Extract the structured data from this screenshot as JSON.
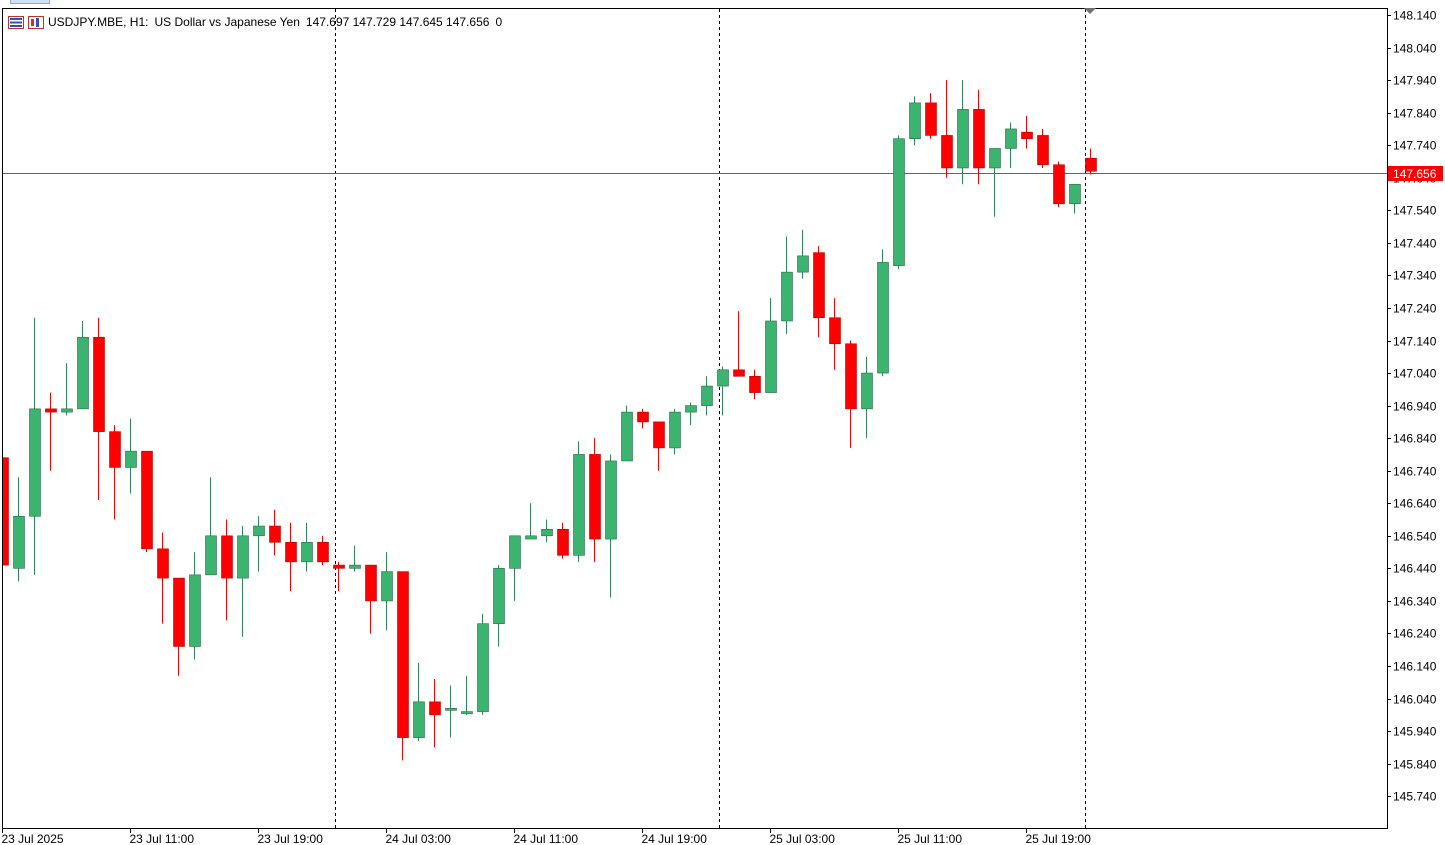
{
  "header": {
    "symbol": "USDJPY.MBE, H1:",
    "description": "US Dollar vs Japanese Yen",
    "ohlc": "147.697 147.729 147.645 147.656",
    "volume": "0"
  },
  "colors": {
    "bull": "#3cb371",
    "bear": "#ff0000",
    "price_line": "#e03030",
    "price_label_bg": "#ff0000",
    "axis": "#000000"
  },
  "chart_data": {
    "type": "candlestick",
    "symbol": "USDJPY.MBE",
    "timeframe": "H1",
    "ylim": [
      145.64,
      148.2
    ],
    "y_ticks": [
      148.14,
      148.04,
      147.94,
      147.84,
      147.74,
      147.64,
      147.54,
      147.44,
      147.34,
      147.24,
      147.14,
      147.04,
      146.94,
      146.84,
      146.74,
      146.64,
      146.54,
      146.44,
      146.34,
      146.24,
      146.14,
      146.04,
      145.94,
      145.84,
      145.74
    ],
    "y_tick_labels": [
      "148.140",
      "148.040",
      "147.940",
      "147.840",
      "147.740",
      "147.640",
      "147.540",
      "147.440",
      "147.340",
      "147.240",
      "147.140",
      "147.040",
      "146.940",
      "146.840",
      "146.740",
      "146.640",
      "146.540",
      "146.440",
      "146.340",
      "146.240",
      "146.140",
      "146.040",
      "145.940",
      "145.840",
      "145.740"
    ],
    "x_tick_labels": [
      {
        "label": "23 Jul 2025",
        "index": 0
      },
      {
        "label": "23 Jul 11:00",
        "index": 8
      },
      {
        "label": "23 Jul 19:00",
        "index": 16
      },
      {
        "label": "24 Jul 03:00",
        "index": 24
      },
      {
        "label": "24 Jul 11:00",
        "index": 32
      },
      {
        "label": "24 Jul 19:00",
        "index": 40
      },
      {
        "label": "25 Jul 03:00",
        "index": 48
      },
      {
        "label": "25 Jul 11:00",
        "index": 56
      },
      {
        "label": "25 Jul 19:00",
        "index": 64
      }
    ],
    "day_separators": [
      20.8,
      44.8,
      67.7
    ],
    "current_price": 147.656,
    "current_price_label": "147.656",
    "grid": false,
    "candles": [
      [
        146.78,
        146.78,
        146.44,
        146.45
      ],
      [
        146.44,
        146.72,
        146.4,
        146.6
      ],
      [
        146.6,
        147.21,
        146.42,
        146.93
      ],
      [
        146.93,
        146.98,
        146.74,
        146.92
      ],
      [
        146.92,
        147.07,
        146.91,
        146.93
      ],
      [
        146.93,
        147.2,
        146.93,
        147.15
      ],
      [
        147.15,
        147.21,
        146.65,
        146.86
      ],
      [
        146.86,
        146.88,
        146.59,
        146.75
      ],
      [
        146.75,
        146.9,
        146.67,
        146.8
      ],
      [
        146.8,
        146.8,
        146.49,
        146.5
      ],
      [
        146.5,
        146.55,
        146.27,
        146.41
      ],
      [
        146.41,
        146.41,
        146.11,
        146.2
      ],
      [
        146.2,
        146.49,
        146.16,
        146.42
      ],
      [
        146.42,
        146.72,
        146.42,
        146.54
      ],
      [
        146.54,
        146.59,
        146.28,
        146.41
      ],
      [
        146.41,
        146.57,
        146.23,
        146.54
      ],
      [
        146.54,
        146.6,
        146.43,
        146.57
      ],
      [
        146.57,
        146.62,
        146.48,
        146.52
      ],
      [
        146.52,
        146.58,
        146.37,
        146.46
      ],
      [
        146.46,
        146.58,
        146.43,
        146.52
      ],
      [
        146.52,
        146.54,
        146.45,
        146.46
      ],
      [
        146.45,
        146.46,
        146.37,
        146.44
      ],
      [
        146.44,
        146.51,
        146.43,
        146.45
      ],
      [
        146.45,
        146.45,
        146.24,
        146.34
      ],
      [
        146.34,
        146.49,
        146.25,
        146.43
      ],
      [
        146.43,
        146.43,
        145.85,
        145.92
      ],
      [
        145.92,
        146.15,
        145.91,
        146.03
      ],
      [
        146.03,
        146.1,
        145.89,
        145.99
      ],
      [
        146.01,
        146.08,
        145.92,
        146.01
      ],
      [
        146.0,
        146.11,
        145.99,
        146.0
      ],
      [
        146.0,
        146.3,
        145.99,
        146.27
      ],
      [
        146.27,
        146.45,
        146.2,
        146.44
      ],
      [
        146.44,
        146.54,
        146.34,
        146.54
      ],
      [
        146.53,
        146.64,
        146.53,
        146.54
      ],
      [
        146.54,
        146.59,
        146.52,
        146.56
      ],
      [
        146.56,
        146.58,
        146.47,
        146.48
      ],
      [
        146.48,
        146.83,
        146.46,
        146.79
      ],
      [
        146.79,
        146.84,
        146.46,
        146.53
      ],
      [
        146.53,
        146.79,
        146.35,
        146.77
      ],
      [
        146.77,
        146.94,
        146.77,
        146.92
      ],
      [
        146.92,
        146.93,
        146.87,
        146.89
      ],
      [
        146.89,
        146.89,
        146.74,
        146.81
      ],
      [
        146.81,
        146.93,
        146.79,
        146.92
      ],
      [
        146.92,
        146.95,
        146.88,
        146.94
      ],
      [
        146.94,
        147.03,
        146.91,
        147.0
      ],
      [
        147.0,
        147.06,
        146.91,
        147.05
      ],
      [
        147.05,
        147.23,
        147.03,
        147.03
      ],
      [
        147.03,
        147.05,
        146.96,
        146.98
      ],
      [
        146.98,
        147.27,
        146.98,
        147.2
      ],
      [
        147.2,
        147.46,
        147.16,
        147.35
      ],
      [
        147.35,
        147.48,
        147.33,
        147.4
      ],
      [
        147.41,
        147.43,
        147.15,
        147.21
      ],
      [
        147.21,
        147.27,
        147.05,
        147.13
      ],
      [
        147.13,
        147.14,
        146.81,
        146.93
      ],
      [
        146.93,
        147.09,
        146.84,
        147.04
      ],
      [
        147.04,
        147.42,
        147.03,
        147.38
      ],
      [
        147.37,
        147.77,
        147.36,
        147.76
      ],
      [
        147.76,
        147.89,
        147.74,
        147.87
      ],
      [
        147.87,
        147.9,
        147.76,
        147.77
      ],
      [
        147.77,
        147.94,
        147.64,
        147.67
      ],
      [
        147.67,
        147.94,
        147.62,
        147.85
      ],
      [
        147.85,
        147.91,
        147.62,
        147.67
      ],
      [
        147.67,
        147.73,
        147.52,
        147.73
      ],
      [
        147.73,
        147.81,
        147.67,
        147.79
      ],
      [
        147.78,
        147.83,
        147.73,
        147.76
      ],
      [
        147.77,
        147.79,
        147.67,
        147.68
      ],
      [
        147.68,
        147.69,
        147.55,
        147.56
      ],
      [
        147.56,
        147.62,
        147.53,
        147.62
      ],
      [
        147.7,
        147.73,
        147.65,
        147.66
      ]
    ]
  }
}
